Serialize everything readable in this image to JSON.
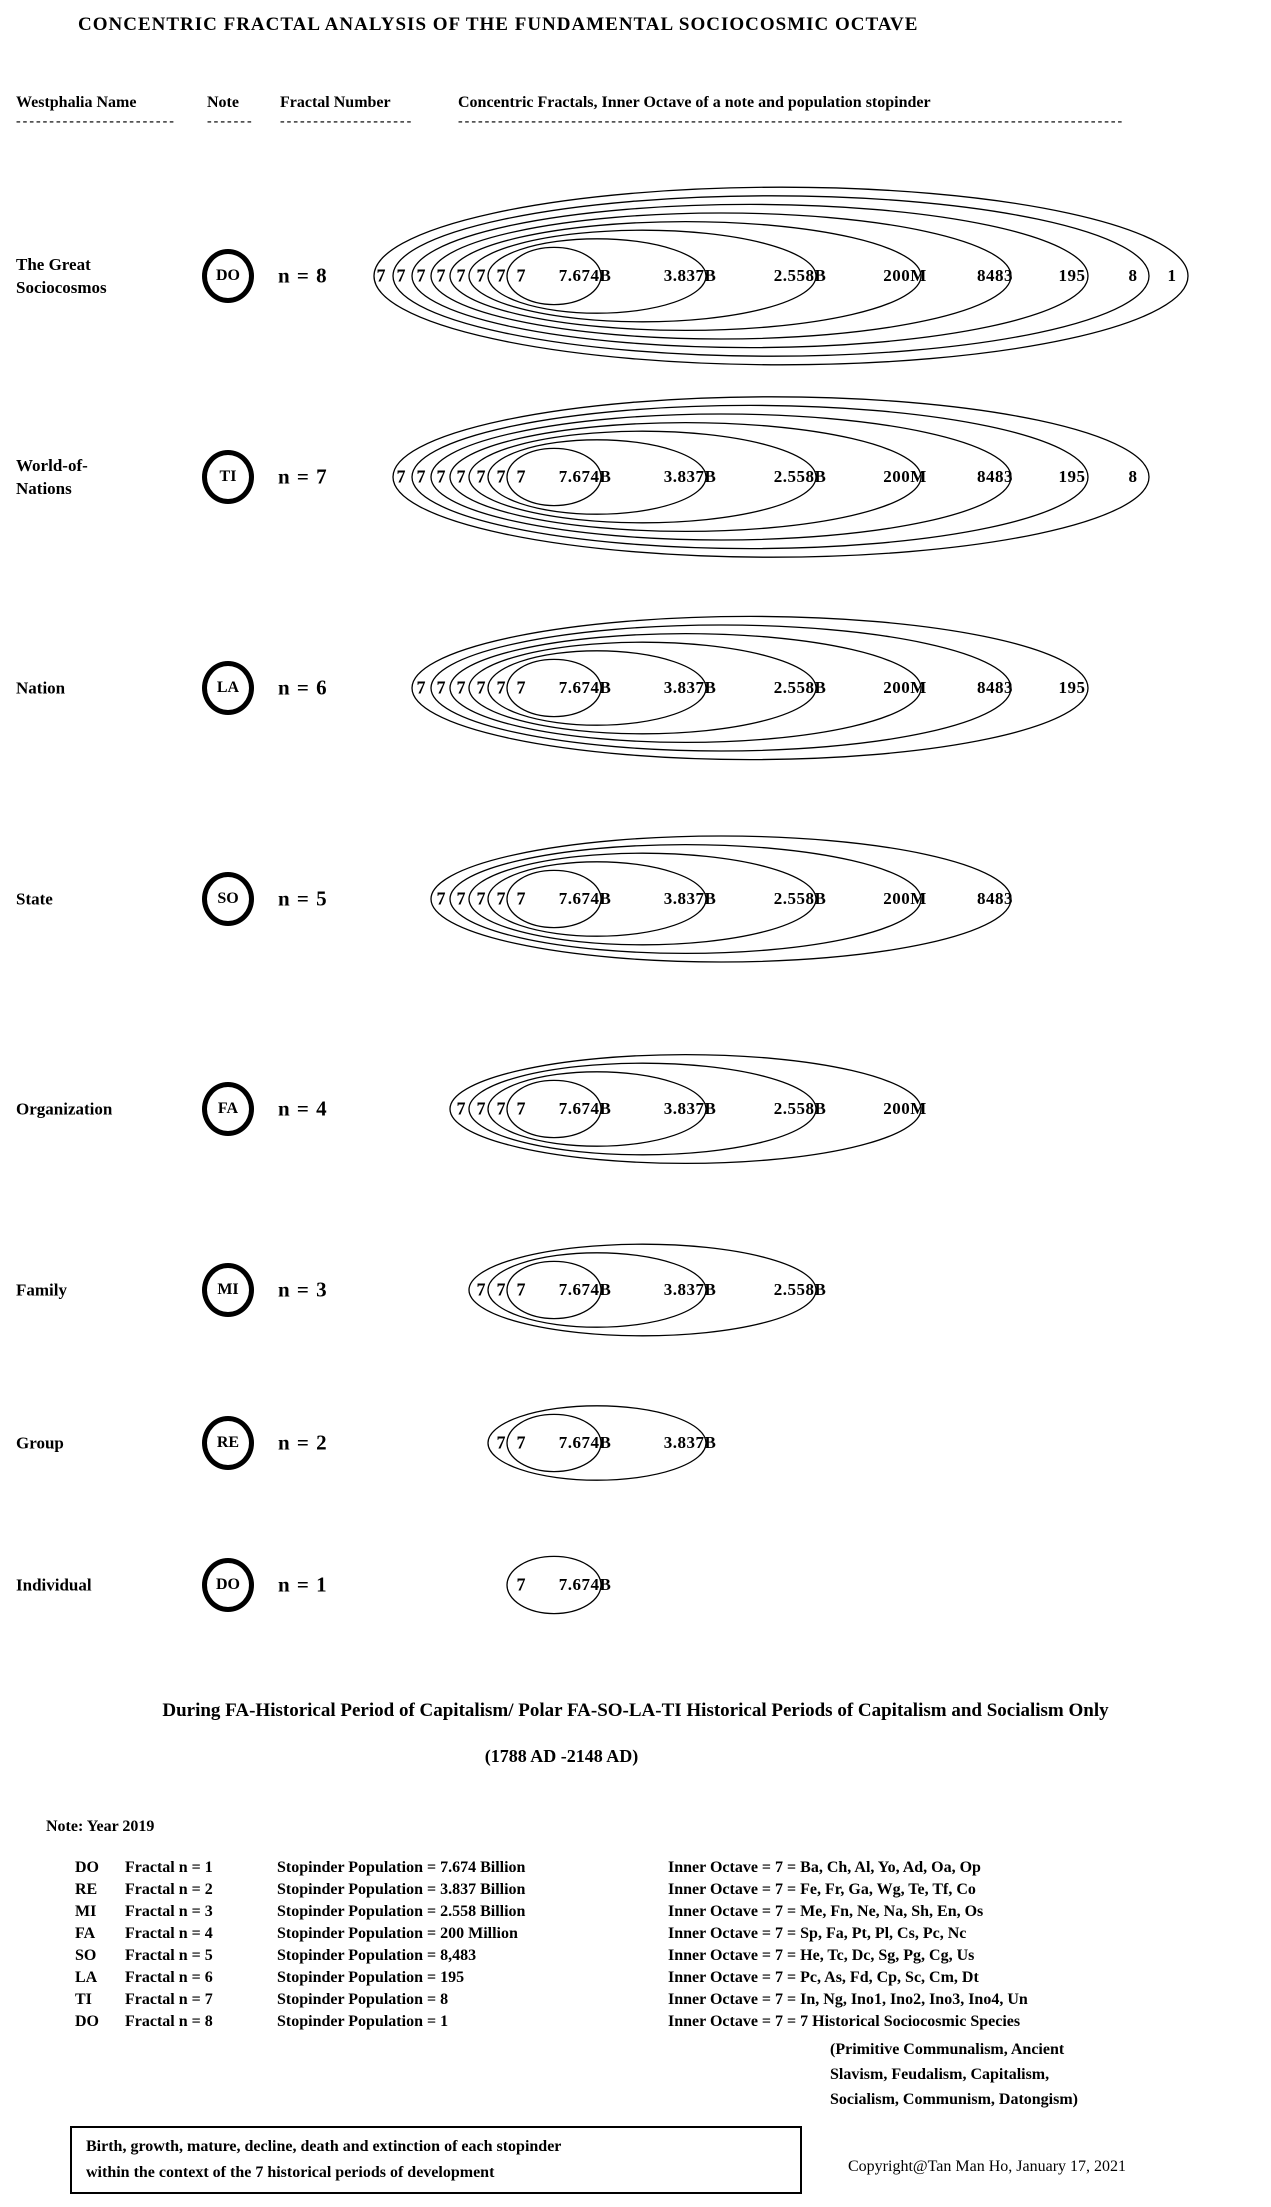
{
  "title": "CONCENTRIC FRACTAL ANALYSIS OF THE FUNDAMENTAL SOCIOCOSMIC OCTAVE",
  "columns": {
    "westphalia": {
      "label": "Westphalia Name",
      "dashes": "------------------------"
    },
    "note": {
      "label": "Note",
      "dashes": "-------"
    },
    "fractal": {
      "label": "Fractal Number",
      "dashes": "--------------------"
    },
    "concentric": {
      "label": "Concentric Fractals, Inner Octave of a note and  population stopinder",
      "dashes": "----------------------------------------------------------------------------------------------------"
    }
  },
  "rows": [
    {
      "name_lines": [
        "The Great",
        "Sociocosmos"
      ],
      "note": "DO",
      "fractal_label": "n = 8",
      "n": 8,
      "values": [
        "7.674B",
        "3.837B",
        "2.558B",
        "200M",
        "8483",
        "195",
        "8",
        "1"
      ]
    },
    {
      "name_lines": [
        "World-of-",
        "Nations"
      ],
      "note": "TI",
      "fractal_label": "n = 7",
      "n": 7,
      "values": [
        "7.674B",
        "3.837B",
        "2.558B",
        "200M",
        "8483",
        "195",
        "8"
      ]
    },
    {
      "name_lines": [
        "Nation"
      ],
      "note": "LA",
      "fractal_label": "n = 6",
      "n": 6,
      "values": [
        "7.674B",
        "3.837B",
        "2.558B",
        "200M",
        "8483",
        "195"
      ]
    },
    {
      "name_lines": [
        "State"
      ],
      "note": "SO",
      "fractal_label": "n = 5",
      "n": 5,
      "values": [
        "7.674B",
        "3.837B",
        "2.558B",
        "200M",
        "8483"
      ]
    },
    {
      "name_lines": [
        "Organization"
      ],
      "note": "FA",
      "fractal_label": "n = 4",
      "n": 4,
      "values": [
        "7.674B",
        "3.837B",
        "2.558B",
        "200M"
      ]
    },
    {
      "name_lines": [
        "Family"
      ],
      "note": "MI",
      "fractal_label": "n = 3",
      "n": 3,
      "values": [
        "7.674B",
        "3.837B",
        "2.558B"
      ]
    },
    {
      "name_lines": [
        "Group"
      ],
      "note": "RE",
      "fractal_label": "n = 2",
      "n": 2,
      "values": [
        "7.674B",
        "3.837B"
      ]
    },
    {
      "name_lines": [
        "Individual"
      ],
      "note": "DO",
      "fractal_label": "n = 1",
      "n": 1,
      "values": [
        "7.674B"
      ]
    }
  ],
  "period_heading": {
    "line1": "During FA-Historical Period of Capitalism/ Polar FA-SO-LA-TI Historical Periods of Capitalism and Socialism Only",
    "line2": "(1788 AD -2148 AD)"
  },
  "note_section": {
    "title": "Note: Year 2019",
    "entries": [
      {
        "note": "DO",
        "fractal": "Fractal n = 1",
        "population": "Stopinder Population = 7.674 Billion",
        "inner_octave": "Inner Octave = 7 =  Ba, Ch, Al, Yo, Ad, Oa, Op"
      },
      {
        "note": "RE",
        "fractal": "Fractal n = 2",
        "population": "Stopinder Population = 3.837 Billion",
        "inner_octave": "Inner Octave = 7 =  Fe, Fr, Ga, Wg, Te, Tf, Co"
      },
      {
        "note": "MI",
        "fractal": "Fractal n = 3",
        "population": "Stopinder Population = 2.558 Billion",
        "inner_octave": "Inner Octave = 7 =  Me, Fn, Ne, Na, Sh, En, Os"
      },
      {
        "note": "FA",
        "fractal": "Fractal n = 4",
        "population": "Stopinder Population = 200 Million",
        "inner_octave": "Inner Octave = 7 =  Sp, Fa, Pt, Pl, Cs, Pc, Nc"
      },
      {
        "note": "SO",
        "fractal": "Fractal n = 5",
        "population": "Stopinder Population = 8,483",
        "inner_octave": "Inner Octave = 7 =  He, Tc, Dc, Sg, Pg, Cg, Us"
      },
      {
        "note": "LA",
        "fractal": "Fractal n = 6",
        "population": "Stopinder Population = 195",
        "inner_octave": "Inner Octave = 7 =  Pc, As, Fd, Cp, Sc, Cm, Dt"
      },
      {
        "note": "TI",
        "fractal": "Fractal n = 7",
        "population": "Stopinder Population = 8",
        "inner_octave": "Inner Octave = 7 =  In, Ng, Ino1, Ino2, Ino3, Ino4, Un"
      },
      {
        "note": "DO",
        "fractal": "Fractal n = 8",
        "population": "Stopinder Population = 1",
        "inner_octave": "Inner Octave = 7 =  7 Historical Sociocosmic Species"
      }
    ],
    "species_lines": [
      "(Primitive Communalism, Ancient",
      "Slavism, Feudalism, Capitalism,",
      "Socialism, Communism, Datongism)"
    ]
  },
  "footer_box_lines": [
    "Birth, growth, mature, decline,  death and extinction of  each  stopinder",
    "within the context of the  7 historical periods of development"
  ],
  "copyright": "Copyright@Tan Man Ho, January 17, 2021"
}
